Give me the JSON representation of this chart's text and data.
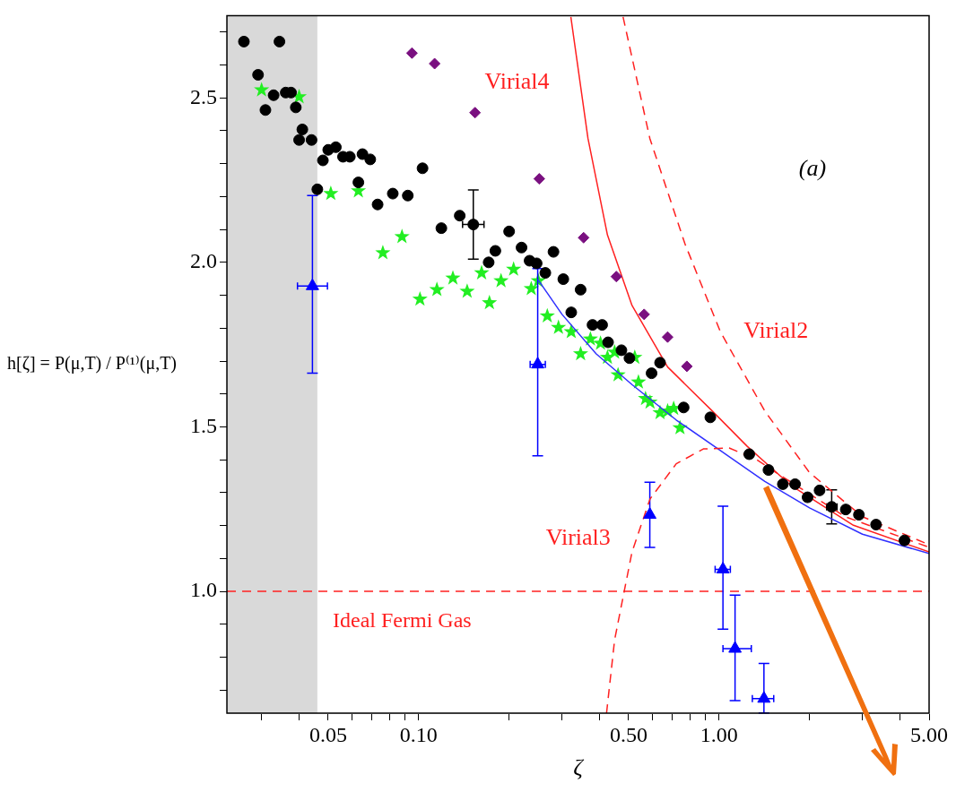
{
  "chart_data": {
    "type": "scatter",
    "xlabel": "ζ",
    "ylabel": "h[ζ] = P(μ,T) / P⁽¹⁾(μ,T)",
    "log": "x",
    "grid": false,
    "legend": false,
    "xlim": [
      0.023,
      5
    ],
    "ylim": [
      0.63,
      2.75
    ],
    "xticks": [
      {
        "value": 0.03,
        "label": null
      },
      {
        "value": 0.04,
        "label": null
      },
      {
        "value": 0.05,
        "label": "0.05"
      },
      {
        "value": 0.06,
        "label": null
      },
      {
        "value": 0.07,
        "label": null
      },
      {
        "value": 0.08,
        "label": null
      },
      {
        "value": 0.09,
        "label": null
      },
      {
        "value": 0.1,
        "label": "0.10"
      },
      {
        "value": 0.2,
        "label": null
      },
      {
        "value": 0.3,
        "label": null
      },
      {
        "value": 0.4,
        "label": null
      },
      {
        "value": 0.5,
        "label": "0.50"
      },
      {
        "value": 0.6,
        "label": null
      },
      {
        "value": 0.7,
        "label": null
      },
      {
        "value": 0.8,
        "label": null
      },
      {
        "value": 0.9,
        "label": null
      },
      {
        "value": 1,
        "label": "1.00"
      },
      {
        "value": 2,
        "label": null
      },
      {
        "value": 3,
        "label": null
      },
      {
        "value": 4,
        "label": null
      },
      {
        "value": 5,
        "label": "5.00"
      }
    ],
    "yticks": [
      {
        "value": 0.7,
        "label": null
      },
      {
        "value": 0.8,
        "label": null
      },
      {
        "value": 0.9,
        "label": null
      },
      {
        "value": 1,
        "label": "1.0"
      },
      {
        "value": 1.1,
        "label": null
      },
      {
        "value": 1.2,
        "label": null
      },
      {
        "value": 1.3,
        "label": null
      },
      {
        "value": 1.4,
        "label": null
      },
      {
        "value": 1.5,
        "label": "1.5"
      },
      {
        "value": 1.6,
        "label": null
      },
      {
        "value": 1.7,
        "label": null
      },
      {
        "value": 1.8,
        "label": null
      },
      {
        "value": 1.9,
        "label": null
      },
      {
        "value": 2,
        "label": "2.0"
      },
      {
        "value": 2.1,
        "label": null
      },
      {
        "value": 2.2,
        "label": null
      },
      {
        "value": 2.3,
        "label": null
      },
      {
        "value": 2.4,
        "label": null
      },
      {
        "value": 2.5,
        "label": "2.5"
      },
      {
        "value": 2.6,
        "label": null
      },
      {
        "value": 2.7,
        "label": null
      }
    ],
    "bands": [
      {
        "axis": "x",
        "from": 0.023,
        "to": 0.046,
        "color": "#d9d9d9"
      }
    ],
    "ref_lines": [
      {
        "axis": "y",
        "value": 1,
        "label": "Ideal Fermi Gas",
        "color": "#ff2020",
        "line_style": "dashed"
      }
    ],
    "annotations": [
      "(a)"
    ],
    "series": [
      {
        "marker": "circle",
        "color": "#000000",
        "x": [
          0.0262,
          0.0292,
          0.0309,
          0.0329,
          0.0344,
          0.0361,
          0.0376,
          0.039,
          0.041,
          0.04,
          0.044,
          0.048,
          0.05,
          0.053,
          0.056,
          0.059,
          0.065,
          0.069,
          0.063,
          0.046,
          0.073,
          0.082,
          0.092,
          0.103,
          0.119,
          0.137,
          0.2,
          0.18,
          0.171,
          0.22,
          0.234,
          0.247,
          0.264,
          0.281,
          0.303,
          0.346,
          0.322,
          0.379,
          0.408,
          0.427,
          0.473,
          0.503,
          0.596,
          0.636,
          0.762,
          0.935,
          1.26,
          1.46,
          1.63,
          1.79,
          1.97,
          2.16,
          2.64,
          2.92,
          3.33,
          4.14
        ],
        "values": [
          2.671,
          2.57,
          2.463,
          2.508,
          2.671,
          2.516,
          2.516,
          2.471,
          2.404,
          2.372,
          2.372,
          2.31,
          2.342,
          2.35,
          2.321,
          2.321,
          2.329,
          2.313,
          2.243,
          2.222,
          2.176,
          2.209,
          2.203,
          2.286,
          2.104,
          2.142,
          2.094,
          2.035,
          2.0,
          2.045,
          2.005,
          1.997,
          1.968,
          2.032,
          1.949,
          1.917,
          1.848,
          1.81,
          1.81,
          1.757,
          1.733,
          1.709,
          1.663,
          1.695,
          1.559,
          1.529,
          1.417,
          1.369,
          1.326,
          1.326,
          1.286,
          1.307,
          1.249,
          1.233,
          1.203,
          1.155
        ]
      },
      {
        "marker": "circle",
        "color": "#000000",
        "x": [
          0.152,
          2.37
        ],
        "values": [
          2.115,
          1.257
        ],
        "errors": [
          0.105,
          0.052
        ],
        "xerrors": [
          [
            0.14,
            0.165
          ],
          [
            2.28,
            2.47
          ]
        ]
      },
      {
        "marker": "star",
        "color": "#22ee22",
        "x": [
          0.03,
          0.04,
          0.051,
          0.063,
          0.076,
          0.088,
          0.101,
          0.115,
          0.13,
          0.145,
          0.162,
          0.172,
          0.188,
          0.207,
          0.237,
          0.25,
          0.268,
          0.292,
          0.322,
          0.346,
          0.373,
          0.403,
          0.425,
          0.449,
          0.461,
          0.524,
          0.539,
          0.569,
          0.589,
          0.636,
          0.674,
          0.706,
          0.741
        ],
        "values": [
          2.524,
          2.503,
          2.209,
          2.217,
          2.029,
          2.078,
          1.888,
          1.917,
          1.952,
          1.912,
          1.968,
          1.877,
          1.944,
          1.979,
          1.92,
          1.944,
          1.837,
          1.802,
          1.789,
          1.722,
          1.767,
          1.754,
          1.711,
          1.727,
          1.658,
          1.711,
          1.636,
          1.586,
          1.575,
          1.543,
          1.548,
          1.556,
          1.497
        ]
      },
      {
        "marker": "diamond",
        "color": "#7a1080",
        "x": [
          0.095,
          0.113,
          0.154,
          0.252,
          0.354,
          0.455,
          0.563,
          0.674,
          0.781
        ],
        "values": [
          2.636,
          2.604,
          2.455,
          2.254,
          2.075,
          1.957,
          1.842,
          1.773,
          1.684
        ]
      },
      {
        "marker": "triangle",
        "color": "#0000ff",
        "x": [
          0.0443,
          0.249,
          0.588,
          1.03,
          1.13,
          1.41
        ],
        "values": [
          1.928,
          1.69,
          1.233,
          1.067,
          0.826,
          0.674
        ],
        "errors": [
          [
            1.663,
            2.203
          ],
          [
            1.412,
            1.981
          ],
          [
            1.134,
            1.332
          ],
          [
            0.885,
            1.259
          ],
          [
            0.668,
            0.989
          ],
          [
            0.631,
            0.781
          ]
        ],
        "xerrors": [
          [
            0.0395,
            0.0497
          ],
          [
            0.235,
            0.264
          ],
          null,
          [
            0.97,
            1.09
          ],
          [
            1.03,
            1.28
          ],
          [
            1.29,
            1.52
          ]
        ]
      },
      {
        "type": "line",
        "name": "Virial4",
        "line_style": "solid",
        "color": "#ff2020",
        "x": [
          0.321,
          0.366,
          0.425,
          0.513,
          0.674,
          0.95,
          1.24,
          1.74,
          2.8,
          5.0
        ],
        "values": [
          2.746,
          2.377,
          2.083,
          1.869,
          1.682,
          1.548,
          1.441,
          1.321,
          1.201,
          1.12
        ]
      },
      {
        "type": "line",
        "name": "Virial2",
        "line_style": "dashed",
        "color": "#ff2020",
        "x": [
          0.479,
          0.588,
          0.77,
          1.01,
          1.42,
          2.0,
          3.0,
          5.0
        ],
        "values": [
          2.746,
          2.377,
          2.056,
          1.789,
          1.548,
          1.361,
          1.227,
          1.142
        ]
      },
      {
        "type": "line",
        "name": "Virial3",
        "line_style": "dashed",
        "color": "#ff2020",
        "x": [
          0.422,
          0.449,
          0.513,
          0.589,
          0.72,
          0.886,
          1.08,
          1.33,
          1.63,
          2.63,
          5.0
        ],
        "values": [
          0.63,
          0.853,
          1.12,
          1.281,
          1.388,
          1.433,
          1.436,
          1.401,
          1.348,
          1.227,
          1.134
        ]
      },
      {
        "type": "line",
        "line_style": "solid",
        "color": "#3030ff",
        "x": [
          0.249,
          0.3,
          0.39,
          0.514,
          0.72,
          1.01,
          1.42,
          2.0,
          3.0,
          5.0
        ],
        "values": [
          1.949,
          1.842,
          1.722,
          1.628,
          1.521,
          1.428,
          1.334,
          1.254,
          1.174,
          1.115
        ]
      }
    ]
  }
}
